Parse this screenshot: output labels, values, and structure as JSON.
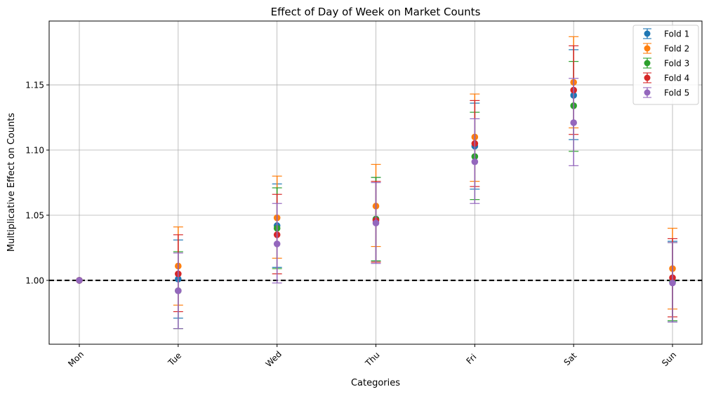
{
  "chart_data": {
    "type": "scatter",
    "title": "Effect of Day of Week on Market Counts",
    "xlabel": "Categories",
    "ylabel": "Multiplicative Effect on Counts",
    "categories": [
      "Mon",
      "Tue",
      "Wed",
      "Thu",
      "Fri",
      "Sat",
      "Sun"
    ],
    "ylim": [
      0.951,
      1.199
    ],
    "yticks": [
      1.0,
      1.05,
      1.1,
      1.15
    ],
    "ytick_labels": [
      "1.00",
      "1.05",
      "1.10",
      "1.15"
    ],
    "grid": true,
    "legend_position": "top-right",
    "reference_line": {
      "y": 1.0,
      "style": "dashed",
      "color": "#000000"
    },
    "series": [
      {
        "name": "Fold 1",
        "color": "#1f77b4",
        "values": [
          1.0,
          1.001,
          1.042,
          1.047,
          1.103,
          1.142,
          0.999
        ],
        "lower": [
          1.0,
          0.971,
          1.01,
          1.015,
          1.07,
          1.108,
          0.968
        ],
        "upper": [
          1.0,
          1.031,
          1.074,
          1.079,
          1.136,
          1.177,
          1.03
        ]
      },
      {
        "name": "Fold 2",
        "color": "#ff7f0e",
        "values": [
          1.0,
          1.011,
          1.048,
          1.057,
          1.11,
          1.152,
          1.009
        ],
        "lower": [
          1.0,
          0.981,
          1.017,
          1.026,
          1.076,
          1.117,
          0.978
        ],
        "upper": [
          1.0,
          1.041,
          1.08,
          1.089,
          1.143,
          1.187,
          1.04
        ]
      },
      {
        "name": "Fold 3",
        "color": "#2ca02c",
        "values": [
          1.0,
          0.992,
          1.04,
          1.047,
          1.095,
          1.134,
          0.999
        ],
        "lower": [
          1.0,
          0.963,
          1.009,
          1.015,
          1.062,
          1.099,
          0.969
        ],
        "upper": [
          1.0,
          1.022,
          1.071,
          1.079,
          1.129,
          1.168,
          1.029
        ]
      },
      {
        "name": "Fold 4",
        "color": "#d62728",
        "values": [
          1.0,
          1.005,
          1.035,
          1.046,
          1.105,
          1.146,
          1.002
        ],
        "lower": [
          1.0,
          0.976,
          1.005,
          1.014,
          1.072,
          1.112,
          0.972
        ],
        "upper": [
          1.0,
          1.035,
          1.066,
          1.076,
          1.138,
          1.18,
          1.032
        ]
      },
      {
        "name": "Fold 5",
        "color": "#9467bd",
        "values": [
          1.0,
          0.992,
          1.028,
          1.044,
          1.091,
          1.121,
          0.998
        ],
        "lower": [
          1.0,
          0.963,
          0.998,
          1.013,
          1.059,
          1.088,
          0.968
        ],
        "upper": [
          1.0,
          1.021,
          1.059,
          1.075,
          1.124,
          1.155,
          1.029
        ]
      }
    ]
  }
}
